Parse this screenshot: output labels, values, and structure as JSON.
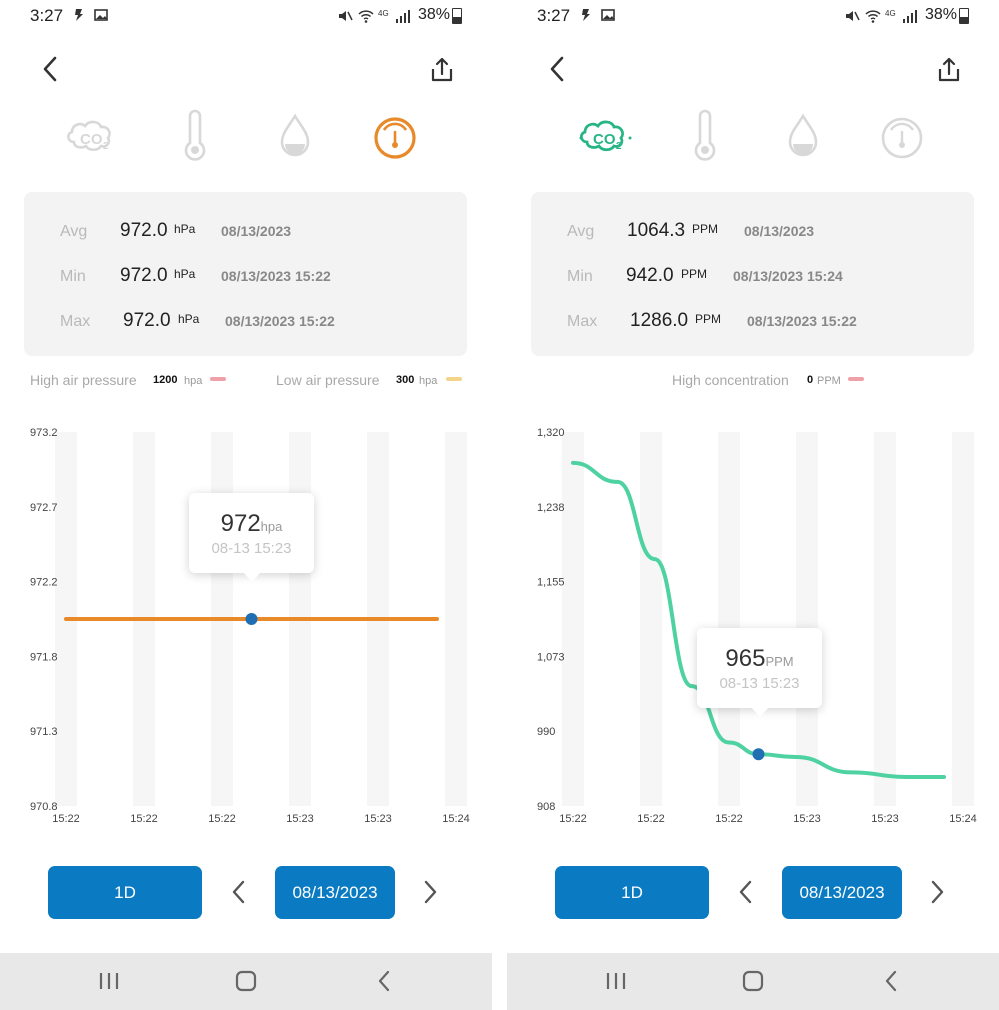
{
  "panels": [
    {
      "status": {
        "time": "3:27",
        "battery": "38%"
      },
      "active_sensor": "pressure",
      "stats": {
        "avg": {
          "label": "Avg",
          "value": "972.0",
          "unit": "hPa",
          "date": "08/13/2023"
        },
        "min": {
          "label": "Min",
          "value": "972.0",
          "unit": "hPa",
          "date": "08/13/2023 15:22"
        },
        "max": {
          "label": "Max",
          "value": "972.0",
          "unit": "hPa",
          "date": "08/13/2023 15:22"
        }
      },
      "legend": [
        {
          "label": "High air pressure",
          "value": "1200",
          "unit": "hpa",
          "color": "#f0a0a8"
        },
        {
          "label": "Low air pressure",
          "value": "300",
          "unit": "hpa",
          "color": "#f3d48a"
        }
      ],
      "tooltip": {
        "value": "972",
        "unit": "hpa",
        "time": "08-13 15:23"
      },
      "controls": {
        "range": "1D",
        "date": "08/13/2023"
      }
    },
    {
      "status": {
        "time": "3:27",
        "battery": "38%"
      },
      "active_sensor": "co2",
      "stats": {
        "avg": {
          "label": "Avg",
          "value": "1064.3",
          "unit": "PPM",
          "date": "08/13/2023"
        },
        "min": {
          "label": "Min",
          "value": "942.0",
          "unit": "PPM",
          "date": "08/13/2023 15:24"
        },
        "max": {
          "label": "Max",
          "value": "1286.0",
          "unit": "PPM",
          "date": "08/13/2023 15:22"
        }
      },
      "legend": [
        {
          "label": "High concentration",
          "value": "0",
          "unit": "PPM",
          "color": "#f0a0a8"
        }
      ],
      "tooltip": {
        "value": "965",
        "unit": "PPM",
        "time": "08-13 15:23"
      },
      "controls": {
        "range": "1D",
        "date": "08/13/2023"
      }
    }
  ],
  "chart_data": [
    {
      "type": "line",
      "x_ticks": [
        "15:22",
        "15:22",
        "15:22",
        "15:23",
        "15:23",
        "15:24"
      ],
      "y_ticks": [
        "973.2",
        "972.7",
        "972.2",
        "971.8",
        "971.3",
        "970.8"
      ],
      "ylim": [
        970.8,
        973.2
      ],
      "series": [
        {
          "color": "#e8892a",
          "points": [
            [
              0.0,
              972.0
            ],
            [
              0.5,
              972.0
            ],
            [
              1.0,
              972.0
            ]
          ]
        }
      ],
      "highlight": {
        "x": 0.5,
        "y": 972.0
      },
      "grid": "vertical-bands"
    },
    {
      "type": "line",
      "x_ticks": [
        "15:22",
        "15:22",
        "15:22",
        "15:23",
        "15:23",
        "15:24"
      ],
      "y_ticks": [
        "1,320",
        "1,238",
        "1,155",
        "1,073",
        "990",
        "908"
      ],
      "ylim": [
        908,
        1320
      ],
      "series": [
        {
          "color": "#4fd2a2",
          "points": [
            [
              0.0,
              1286
            ],
            [
              0.12,
              1265
            ],
            [
              0.22,
              1180
            ],
            [
              0.32,
              1040
            ],
            [
              0.42,
              978
            ],
            [
              0.5,
              965
            ],
            [
              0.6,
              962
            ],
            [
              0.75,
              945
            ],
            [
              0.9,
              940
            ],
            [
              1.0,
              940
            ]
          ]
        }
      ],
      "highlight": {
        "x": 0.5,
        "y": 965
      },
      "grid": "vertical-bands"
    }
  ]
}
